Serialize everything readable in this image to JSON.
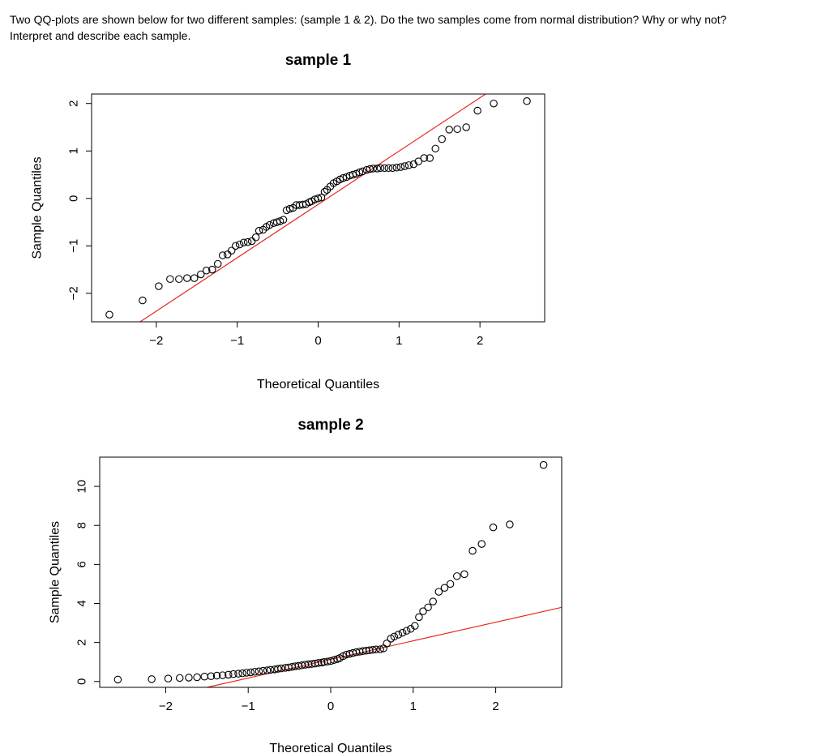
{
  "question": {
    "line1": "Two QQ-plots are shown below for two different samples: (sample 1 & 2). Do the two samples come from normal distribution? Why or why not?",
    "line2": "Interpret and describe each sample."
  },
  "chart_data": [
    {
      "type": "scatter",
      "title": "sample 1",
      "xlabel": "Theoretical Quantiles",
      "ylabel": "Sample Quantiles",
      "xlim": [
        -2.8,
        2.8
      ],
      "ylim": [
        -2.6,
        2.2
      ],
      "xticks": [
        -2,
        -1,
        0,
        1,
        2
      ],
      "yticks": [
        -2,
        -1,
        0,
        1,
        2
      ],
      "xtick_labels": [
        "−2",
        "−1",
        "0",
        "1",
        "2"
      ],
      "ytick_labels": [
        "−2",
        "−1",
        "0",
        "1",
        "2"
      ],
      "grid": false,
      "reference_line": {
        "color": "#e8281e",
        "points": [
          [
            -2.2,
            -2.6
          ],
          [
            2.07,
            2.2
          ]
        ]
      },
      "points": {
        "x": [
          -2.58,
          -2.17,
          -1.97,
          -1.83,
          -1.72,
          -1.62,
          -1.53,
          -1.45,
          -1.38,
          -1.31,
          -1.24,
          -1.18,
          -1.12,
          -1.07,
          -1.02,
          -0.97,
          -0.92,
          -0.87,
          -0.82,
          -0.77,
          -0.73,
          -0.68,
          -0.64,
          -0.6,
          -0.55,
          -0.51,
          -0.47,
          -0.43,
          -0.39,
          -0.35,
          -0.31,
          -0.27,
          -0.23,
          -0.19,
          -0.15,
          -0.11,
          -0.08,
          -0.04,
          0.0,
          0.04,
          0.08,
          0.11,
          0.15,
          0.19,
          0.23,
          0.27,
          0.31,
          0.35,
          0.39,
          0.43,
          0.47,
          0.51,
          0.55,
          0.6,
          0.64,
          0.68,
          0.73,
          0.77,
          0.82,
          0.87,
          0.92,
          0.97,
          1.02,
          1.07,
          1.12,
          1.18,
          1.24,
          1.31,
          1.38,
          1.45,
          1.53,
          1.62,
          1.72,
          1.83,
          1.97,
          2.17,
          2.58
        ],
        "y": [
          -2.45,
          -2.15,
          -1.85,
          -1.7,
          -1.7,
          -1.68,
          -1.68,
          -1.6,
          -1.52,
          -1.5,
          -1.38,
          -1.2,
          -1.18,
          -1.1,
          -1.0,
          -0.97,
          -0.93,
          -0.92,
          -0.9,
          -0.82,
          -0.68,
          -0.66,
          -0.6,
          -0.56,
          -0.52,
          -0.5,
          -0.48,
          -0.45,
          -0.25,
          -0.22,
          -0.2,
          -0.14,
          -0.14,
          -0.13,
          -0.12,
          -0.08,
          -0.06,
          -0.02,
          0.0,
          0.02,
          0.14,
          0.18,
          0.25,
          0.32,
          0.36,
          0.4,
          0.43,
          0.45,
          0.48,
          0.5,
          0.52,
          0.55,
          0.57,
          0.6,
          0.62,
          0.63,
          0.63,
          0.64,
          0.64,
          0.64,
          0.64,
          0.65,
          0.66,
          0.68,
          0.7,
          0.72,
          0.78,
          0.85,
          0.85,
          1.05,
          1.25,
          1.45,
          1.46,
          1.5,
          1.85,
          2.0,
          2.05
        ]
      }
    },
    {
      "type": "scatter",
      "title": "sample 2",
      "xlabel": "Theoretical Quantiles",
      "ylabel": "Sample Quantiles",
      "xlim": [
        -2.8,
        2.8
      ],
      "ylim": [
        -0.3,
        11.5
      ],
      "xticks": [
        -2,
        -1,
        0,
        1,
        2
      ],
      "yticks": [
        0,
        2,
        4,
        6,
        8,
        10
      ],
      "xtick_labels": [
        "−2",
        "−1",
        "0",
        "1",
        "2"
      ],
      "ytick_labels": [
        "0",
        "2",
        "4",
        "6",
        "8",
        "10"
      ],
      "grid": false,
      "reference_line": {
        "color": "#e8281e",
        "points": [
          [
            -1.5,
            -0.3
          ],
          [
            2.8,
            3.8
          ]
        ]
      },
      "points": {
        "x": [
          -2.58,
          -2.17,
          -1.97,
          -1.83,
          -1.72,
          -1.62,
          -1.53,
          -1.45,
          -1.38,
          -1.31,
          -1.24,
          -1.18,
          -1.12,
          -1.07,
          -1.02,
          -0.97,
          -0.92,
          -0.87,
          -0.82,
          -0.77,
          -0.73,
          -0.68,
          -0.64,
          -0.6,
          -0.55,
          -0.51,
          -0.47,
          -0.43,
          -0.39,
          -0.35,
          -0.31,
          -0.27,
          -0.23,
          -0.19,
          -0.15,
          -0.11,
          -0.08,
          -0.04,
          0.0,
          0.04,
          0.08,
          0.11,
          0.15,
          0.19,
          0.23,
          0.27,
          0.31,
          0.35,
          0.39,
          0.43,
          0.47,
          0.51,
          0.55,
          0.6,
          0.64,
          0.68,
          0.73,
          0.77,
          0.82,
          0.87,
          0.92,
          0.97,
          1.02,
          1.07,
          1.12,
          1.18,
          1.24,
          1.31,
          1.38,
          1.45,
          1.53,
          1.62,
          1.72,
          1.83,
          1.97,
          2.17,
          2.58
        ],
        "y": [
          0.1,
          0.12,
          0.15,
          0.18,
          0.2,
          0.22,
          0.25,
          0.27,
          0.3,
          0.32,
          0.35,
          0.38,
          0.4,
          0.42,
          0.45,
          0.47,
          0.5,
          0.52,
          0.55,
          0.57,
          0.6,
          0.62,
          0.65,
          0.67,
          0.7,
          0.72,
          0.75,
          0.78,
          0.8,
          0.83,
          0.86,
          0.88,
          0.9,
          0.92,
          0.95,
          0.97,
          1.0,
          1.02,
          1.05,
          1.1,
          1.15,
          1.2,
          1.3,
          1.38,
          1.42,
          1.46,
          1.5,
          1.53,
          1.56,
          1.58,
          1.6,
          1.62,
          1.64,
          1.65,
          1.7,
          1.95,
          2.2,
          2.3,
          2.4,
          2.5,
          2.6,
          2.7,
          2.85,
          3.3,
          3.6,
          3.8,
          4.1,
          4.6,
          4.8,
          5.0,
          5.4,
          5.5,
          6.7,
          7.05,
          7.9,
          8.05,
          11.1
        ]
      }
    }
  ]
}
